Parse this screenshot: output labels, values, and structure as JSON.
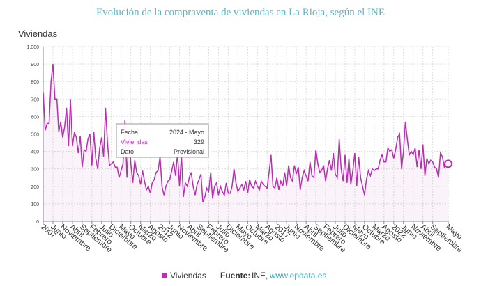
{
  "chart_data": {
    "type": "line",
    "title": "Evolución de la compraventa de viviendas en La Rioja, según el INE",
    "y_label": "Viviendas",
    "categories": [
      "2007",
      null,
      null,
      null,
      null,
      "Junio",
      null,
      null,
      null,
      null,
      "Noviembre",
      null,
      null,
      null,
      null,
      "Abril",
      null,
      null,
      null,
      null,
      "Septiembre",
      null,
      null,
      null,
      null,
      "Febrero",
      null,
      null,
      null,
      null,
      "Julio",
      null,
      null,
      null,
      null,
      "Diciembre",
      null,
      null,
      null,
      null,
      "Mayo",
      null,
      null,
      null,
      null,
      "Octubre",
      null,
      null,
      null,
      null,
      "Marzo",
      null,
      null,
      null,
      null,
      "Agosto",
      null,
      null,
      null,
      null,
      "2012",
      null,
      null,
      null,
      null,
      "Junio",
      null,
      null,
      null,
      null,
      "Noviembre",
      null,
      null,
      null,
      null,
      "Abril",
      null,
      null,
      null,
      null,
      "Septiembre",
      null,
      null,
      null,
      null,
      "Febrero",
      null,
      null,
      null,
      null,
      "Julio",
      null,
      null,
      null,
      null,
      "Diciembre",
      null,
      null,
      null,
      null,
      "Mayo",
      null,
      null,
      null,
      null,
      "Octubre",
      null,
      null,
      null,
      null,
      "Marzo",
      null,
      null,
      null,
      null,
      "Agosto",
      null,
      null,
      null,
      null,
      "2017",
      null,
      null,
      null,
      null,
      "Junio",
      null,
      null,
      null,
      null,
      "Noviembre",
      null,
      null,
      null,
      null,
      "Abril",
      null,
      null,
      null,
      null,
      "Septiembre",
      null,
      null,
      null,
      null,
      "Febrero",
      null,
      null,
      null,
      null,
      "Julio",
      null,
      null,
      null,
      null,
      "Diciembre",
      null,
      null,
      null,
      null,
      "Mayo",
      null,
      null,
      null,
      null,
      "Octubre",
      null,
      null,
      null,
      null,
      "Marzo",
      null,
      null,
      null,
      null,
      "Agosto",
      null,
      null,
      null,
      null,
      "2022",
      null,
      null,
      null,
      null,
      "Junio",
      null,
      null,
      null,
      null,
      "Noviembre",
      null,
      null,
      null,
      null,
      "Abril",
      null,
      null,
      null,
      null,
      "Septiembre",
      null,
      null,
      null,
      null,
      null,
      null,
      null,
      "Mayo"
    ],
    "series": [
      {
        "name": "Viviendas",
        "color": "#b92eb2",
        "values": [
          740,
          520,
          560,
          560,
          800,
          900,
          700,
          700,
          510,
          570,
          480,
          540,
          650,
          430,
          700,
          430,
          510,
          480,
          390,
          490,
          310,
          410,
          400,
          470,
          500,
          320,
          510,
          360,
          300,
          420,
          480,
          370,
          650,
          450,
          320,
          330,
          340,
          310,
          310,
          250,
          290,
          330,
          580,
          250,
          500,
          330,
          220,
          350,
          280,
          260,
          210,
          290,
          230,
          180,
          200,
          160,
          220,
          240,
          280,
          290,
          370,
          200,
          150,
          200,
          230,
          240,
          290,
          340,
          260,
          390,
          200,
          380,
          140,
          220,
          200,
          250,
          280,
          200,
          150,
          210,
          240,
          270,
          110,
          140,
          190,
          170,
          280,
          130,
          200,
          220,
          150,
          200,
          170,
          150,
          220,
          160,
          160,
          200,
          300,
          220,
          170,
          190,
          210,
          180,
          230,
          160,
          240,
          200,
          190,
          230,
          200,
          180,
          230,
          210,
          200,
          190,
          280,
          380,
          200,
          190,
          250,
          180,
          230,
          200,
          280,
          200,
          320,
          250,
          230,
          320,
          270,
          310,
          180,
          250,
          290,
          260,
          230,
          340,
          260,
          250,
          410,
          330,
          280,
          290,
          320,
          230,
          300,
          350,
          290,
          390,
          270,
          250,
          470,
          300,
          230,
          380,
          220,
          360,
          210,
          290,
          390,
          200,
          370,
          250,
          200,
          150,
          240,
          290,
          260,
          300,
          290,
          300,
          300,
          350,
          380,
          340,
          340,
          420,
          400,
          410,
          360,
          410,
          480,
          500,
          300,
          400,
          570,
          470,
          380,
          400,
          380,
          420,
          310,
          410,
          300,
          440,
          260,
          360,
          330,
          350,
          340,
          310,
          300,
          250,
          390,
          370,
          310,
          330,
          329
        ]
      }
    ],
    "ylim": [
      0,
      1000
    ],
    "yticks": [
      0,
      100,
      200,
      300,
      400,
      500,
      600,
      700,
      800,
      900,
      {
        "value": 1000,
        "label": "1,000"
      }
    ],
    "grid": true,
    "tooltip": {
      "rows": [
        [
          "Fecha",
          "2024 - Mayo"
        ],
        [
          "Viviendas",
          329
        ],
        [
          "Dato",
          "Provisional"
        ]
      ]
    },
    "source_label": "Fuente:",
    "source": "INE,",
    "source_link": "www.epdata.es"
  }
}
